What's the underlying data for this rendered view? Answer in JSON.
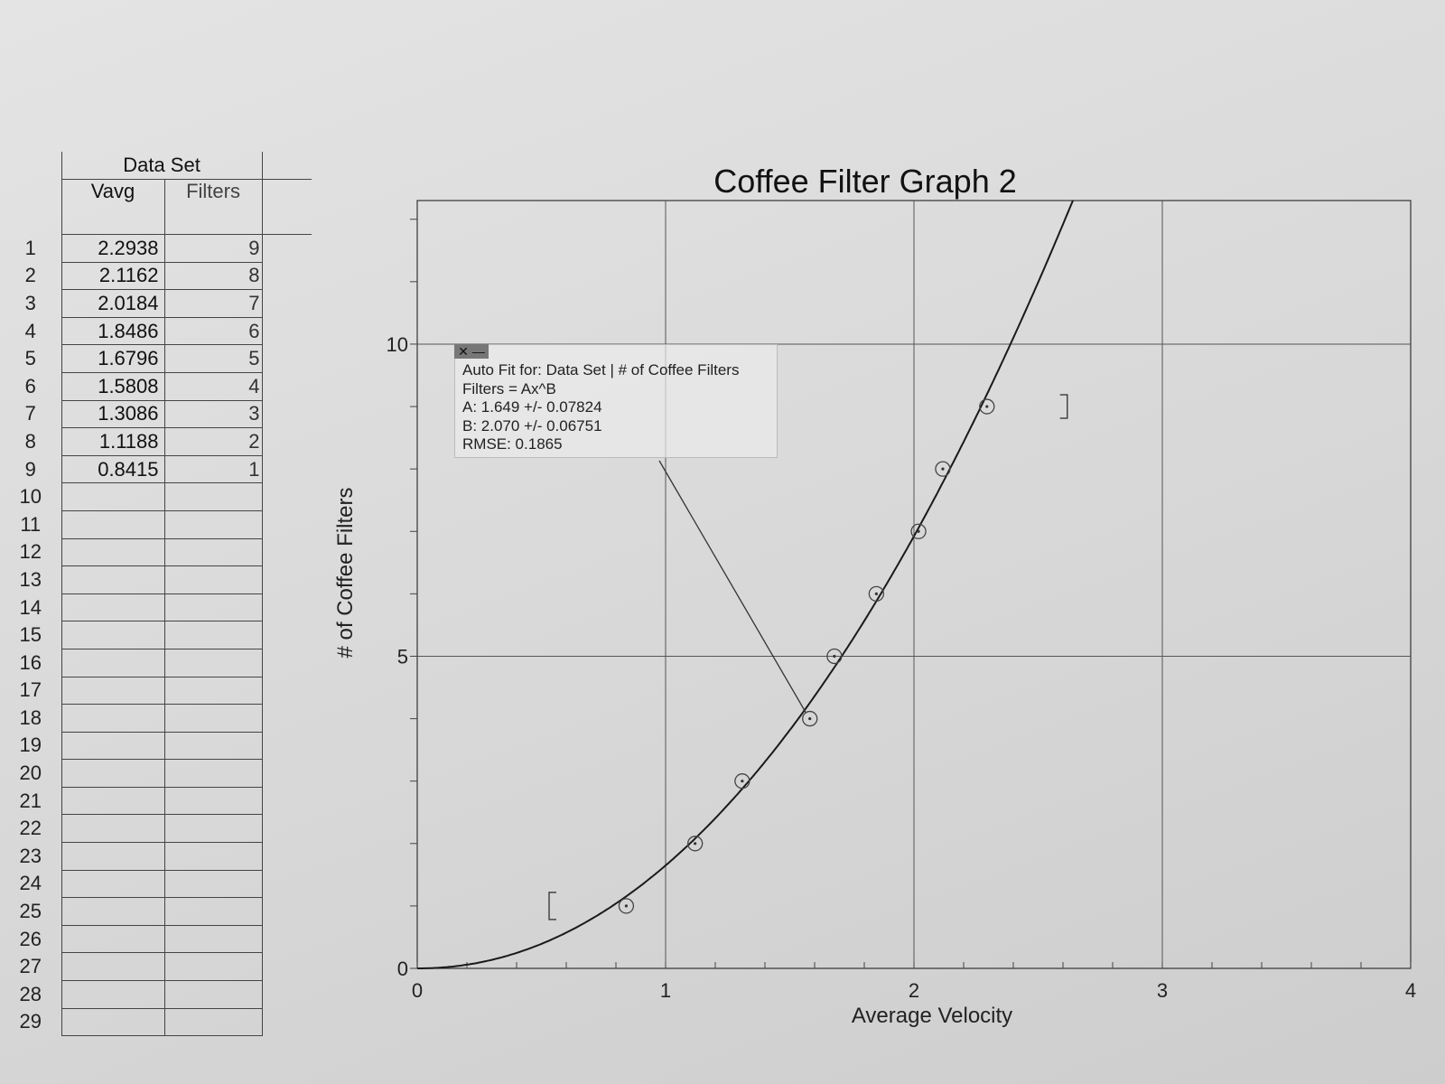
{
  "table": {
    "title": "Data Set",
    "columns": [
      "Vavg",
      "Filters"
    ],
    "rows": [
      {
        "n": "1",
        "vavg": "2.2938",
        "filters": "9"
      },
      {
        "n": "2",
        "vavg": "2.1162",
        "filters": "8"
      },
      {
        "n": "3",
        "vavg": "2.0184",
        "filters": "7"
      },
      {
        "n": "4",
        "vavg": "1.8486",
        "filters": "6"
      },
      {
        "n": "5",
        "vavg": "1.6796",
        "filters": "5"
      },
      {
        "n": "6",
        "vavg": "1.5808",
        "filters": "4"
      },
      {
        "n": "7",
        "vavg": "1.3086",
        "filters": "3"
      },
      {
        "n": "8",
        "vavg": "1.1188",
        "filters": "2"
      },
      {
        "n": "9",
        "vavg": "0.8415",
        "filters": "1"
      },
      {
        "n": "10",
        "vavg": "",
        "filters": ""
      },
      {
        "n": "11",
        "vavg": "",
        "filters": ""
      },
      {
        "n": "12",
        "vavg": "",
        "filters": ""
      },
      {
        "n": "13",
        "vavg": "",
        "filters": ""
      },
      {
        "n": "14",
        "vavg": "",
        "filters": ""
      },
      {
        "n": "15",
        "vavg": "",
        "filters": ""
      },
      {
        "n": "16",
        "vavg": "",
        "filters": ""
      },
      {
        "n": "17",
        "vavg": "",
        "filters": ""
      },
      {
        "n": "18",
        "vavg": "",
        "filters": ""
      },
      {
        "n": "19",
        "vavg": "",
        "filters": ""
      },
      {
        "n": "20",
        "vavg": "",
        "filters": ""
      },
      {
        "n": "21",
        "vavg": "",
        "filters": ""
      },
      {
        "n": "22",
        "vavg": "",
        "filters": ""
      },
      {
        "n": "23",
        "vavg": "",
        "filters": ""
      },
      {
        "n": "24",
        "vavg": "",
        "filters": ""
      },
      {
        "n": "25",
        "vavg": "",
        "filters": ""
      },
      {
        "n": "26",
        "vavg": "",
        "filters": ""
      },
      {
        "n": "27",
        "vavg": "",
        "filters": ""
      },
      {
        "n": "28",
        "vavg": "",
        "filters": ""
      },
      {
        "n": "29",
        "vavg": "",
        "filters": ""
      }
    ]
  },
  "fit_box": {
    "line1": "Auto Fit for: Data Set | # of Coffee Filters",
    "line2": "Filters = Ax^B",
    "line3": "A: 1.649 +/- 0.07824",
    "line4": "B: 2.070 +/- 0.06751",
    "line5": "RMSE: 0.1865",
    "close_glyph": "✕",
    "minimize_glyph": "—"
  },
  "chart_data": {
    "type": "scatter",
    "title": "Coffee Filter Graph 2",
    "xlabel": "Average Velocity",
    "ylabel": "# of Coffee Filters",
    "xlim": [
      0,
      4
    ],
    "ylim": [
      0,
      12.3
    ],
    "xticks": [
      0,
      1,
      2,
      3,
      4
    ],
    "yticks": [
      0,
      5,
      10
    ],
    "grid": true,
    "series": [
      {
        "x": [
          2.2938,
          2.1162,
          2.0184,
          1.8486,
          1.6796,
          1.5808,
          1.3086,
          1.1188,
          0.8415
        ],
        "y": [
          9,
          8,
          7,
          6,
          5,
          4,
          3,
          2,
          1
        ]
      }
    ],
    "fit": {
      "form": "Ax^B",
      "A": 1.649,
      "B": 2.07
    },
    "fit_range": [
      0.84,
      2.29
    ]
  }
}
